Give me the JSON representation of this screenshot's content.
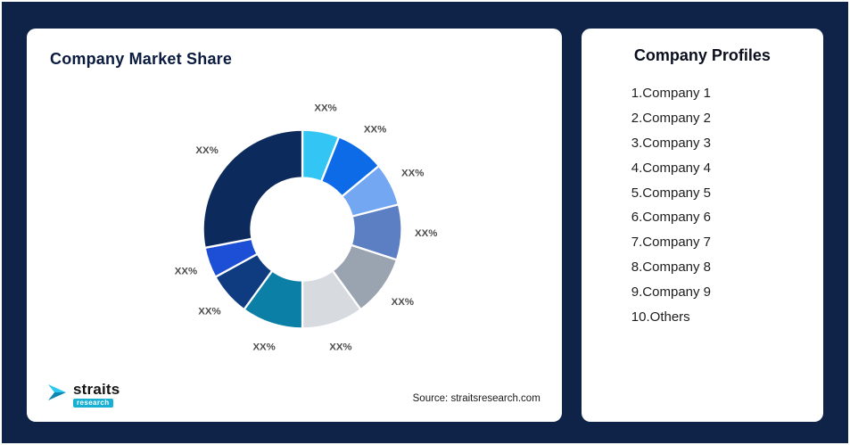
{
  "frame": {
    "background": "#0E2347"
  },
  "logo": {
    "text": "straits",
    "subtext": "research",
    "accent": "#17B0D3"
  },
  "profiles_card": {
    "title": "Company Profiles",
    "items": [
      "1.Company 1",
      "2.Company 2",
      "3.Company 3",
      "4.Company 4",
      "5.Company 5",
      "6.Company 6",
      "7.Company 7",
      "8.Company 8",
      "9.Company 9",
      "10.Others"
    ]
  },
  "chart_data": {
    "type": "donut",
    "title": "Company Market Share",
    "source": "Source: straitsresearch.com",
    "legend": "none",
    "start_angle_deg": 0,
    "direction": "clockwise",
    "segments": [
      {
        "label": "XX%",
        "value": 6,
        "color": "#33C5F3"
      },
      {
        "label": "XX%",
        "value": 8,
        "color": "#0E6BE8"
      },
      {
        "label": "XX%",
        "value": 7,
        "color": "#74A7F2"
      },
      {
        "label": "XX%",
        "value": 9,
        "color": "#5C7EC3"
      },
      {
        "label": "XX%",
        "value": 10,
        "color": "#9AA3B0"
      },
      {
        "label": "XX%",
        "value": 10,
        "color": "#D7DBE0"
      },
      {
        "label": "XX%",
        "value": 10,
        "color": "#0C7FA6"
      },
      {
        "label": "XX%",
        "value": 7,
        "color": "#0F3B80"
      },
      {
        "label": "XX%",
        "value": 5,
        "color": "#1C4FD6"
      },
      {
        "label": "XX%",
        "value": 28,
        "color": "#0D2A5C"
      }
    ]
  }
}
